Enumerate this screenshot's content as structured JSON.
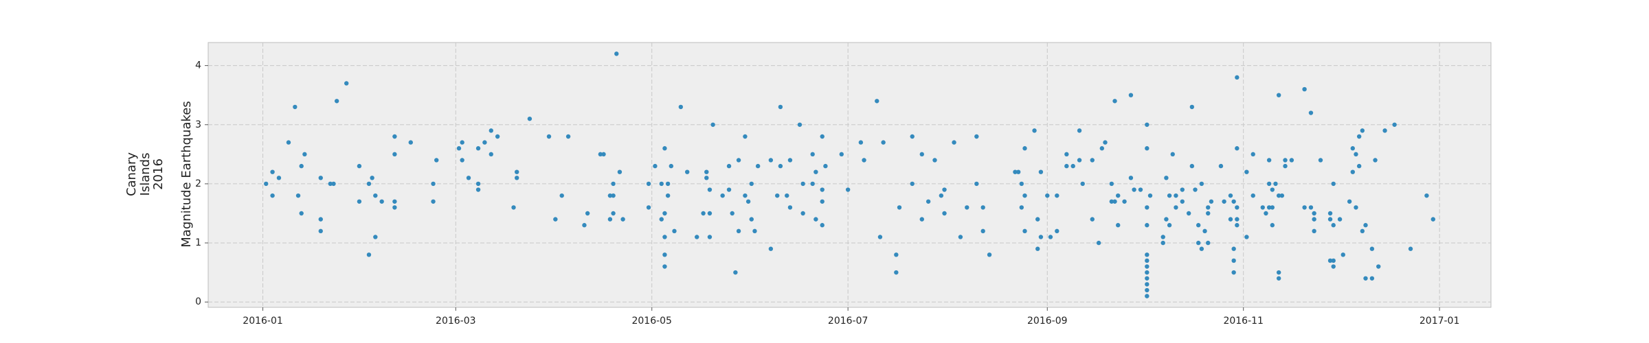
{
  "chart_data": {
    "type": "scatter",
    "ylabel_lines": [
      "Canary",
      "Islands",
      "2016",
      "Magnitude Earthquakes"
    ],
    "color": "#348abd",
    "grid": true,
    "xlim": [
      -17,
      382
    ],
    "ylim": [
      -0.09,
      4.39
    ],
    "xticks": [
      {
        "value": 0,
        "label": "2016-01"
      },
      {
        "value": 60,
        "label": "2016-03"
      },
      {
        "value": 121,
        "label": "2016-05"
      },
      {
        "value": 182,
        "label": "2016-07"
      },
      {
        "value": 244,
        "label": "2016-09"
      },
      {
        "value": 305,
        "label": "2016-11"
      },
      {
        "value": 366,
        "label": "2017-01"
      }
    ],
    "yticks": [
      0,
      1,
      2,
      3,
      4
    ],
    "x": [
      1,
      3,
      3,
      5,
      8,
      10,
      11,
      12,
      12,
      13,
      18,
      18,
      18,
      21,
      22,
      23,
      26,
      30,
      30,
      33,
      33,
      34,
      35,
      35,
      37,
      41,
      41,
      41,
      41,
      46,
      53,
      53,
      54,
      61,
      62,
      62,
      64,
      67,
      67,
      67,
      69,
      71,
      71,
      73,
      78,
      79,
      79,
      83,
      89,
      91,
      93,
      95,
      100,
      101,
      105,
      106,
      108,
      108,
      109,
      109,
      109,
      110,
      111,
      112,
      120,
      120,
      122,
      124,
      124,
      125,
      125,
      125,
      125,
      125,
      126,
      126,
      127,
      128,
      130,
      132,
      135,
      137,
      138,
      138,
      139,
      139,
      139,
      140,
      143,
      145,
      145,
      146,
      147,
      148,
      148,
      150,
      150,
      151,
      152,
      152,
      153,
      154,
      158,
      158,
      160,
      161,
      161,
      163,
      164,
      164,
      167,
      168,
      168,
      171,
      171,
      172,
      172,
      174,
      174,
      174,
      174,
      175,
      180,
      182,
      186,
      187,
      191,
      192,
      193,
      197,
      197,
      198,
      202,
      202,
      205,
      205,
      207,
      209,
      211,
      212,
      212,
      215,
      217,
      219,
      222,
      222,
      224,
      224,
      226,
      234,
      235,
      236,
      236,
      237,
      237,
      237,
      240,
      241,
      241,
      242,
      242,
      244,
      245,
      247,
      247,
      250,
      250,
      252,
      254,
      254,
      255,
      258,
      258,
      260,
      261,
      262,
      264,
      264,
      265,
      265,
      266,
      266,
      268,
      270,
      270,
      271,
      273,
      275,
      275,
      275,
      275,
      275,
      275,
      275,
      275,
      275,
      275,
      275,
      275,
      276,
      280,
      280,
      281,
      281,
      282,
      282,
      283,
      284,
      284,
      286,
      286,
      288,
      289,
      289,
      290,
      291,
      291,
      292,
      292,
      293,
      294,
      294,
      294,
      295,
      298,
      299,
      301,
      301,
      302,
      302,
      302,
      302,
      303,
      303,
      303,
      303,
      303,
      306,
      306,
      308,
      308,
      311,
      312,
      313,
      313,
      313,
      314,
      314,
      314,
      315,
      316,
      316,
      316,
      316,
      317,
      318,
      318,
      320,
      324,
      324,
      326,
      326,
      327,
      327,
      327,
      329,
      332,
      332,
      332,
      333,
      333,
      333,
      333,
      335,
      336,
      338,
      339,
      339,
      340,
      340,
      341,
      341,
      342,
      342,
      343,
      343,
      345,
      345,
      346,
      347,
      349,
      352,
      357,
      362,
      364
    ],
    "values": [
      2.0,
      2.2,
      1.8,
      2.1,
      2.7,
      3.3,
      1.8,
      1.5,
      2.3,
      2.5,
      2.1,
      1.4,
      1.2,
      2.0,
      2.0,
      3.4,
      3.7,
      2.3,
      1.7,
      0.8,
      2.0,
      2.1,
      1.1,
      1.8,
      1.7,
      1.6,
      1.7,
      2.5,
      2.8,
      2.7,
      1.7,
      2.0,
      2.4,
      2.6,
      2.7,
      2.4,
      2.1,
      2.0,
      1.9,
      2.6,
      2.7,
      2.9,
      2.5,
      2.8,
      1.6,
      2.1,
      2.2,
      3.1,
      2.8,
      1.4,
      1.8,
      2.8,
      1.3,
      1.5,
      2.5,
      2.5,
      1.4,
      1.8,
      2.0,
      1.5,
      1.8,
      4.2,
      2.2,
      1.4,
      2.0,
      1.6,
      2.3,
      1.4,
      2.0,
      2.6,
      0.6,
      0.8,
      1.1,
      1.5,
      1.8,
      2.0,
      2.3,
      1.2,
      3.3,
      2.2,
      1.1,
      1.5,
      2.1,
      2.2,
      1.9,
      1.5,
      1.1,
      3.0,
      1.8,
      2.3,
      1.9,
      1.5,
      0.5,
      2.4,
      1.2,
      1.8,
      2.8,
      1.7,
      1.4,
      2.0,
      1.2,
      2.3,
      0.9,
      2.4,
      1.8,
      3.3,
      2.3,
      1.8,
      1.6,
      2.4,
      3.0,
      2.0,
      1.5,
      2.5,
      2.0,
      1.4,
      2.2,
      1.9,
      1.7,
      1.3,
      2.8,
      2.3,
      2.5,
      1.9,
      2.7,
      2.4,
      3.4,
      1.1,
      2.7,
      0.5,
      0.8,
      1.6,
      2.8,
      2.0,
      2.5,
      1.4,
      1.7,
      2.4,
      1.8,
      1.5,
      1.9,
      2.7,
      1.1,
      1.6,
      2.8,
      2.0,
      1.6,
      1.2,
      0.8,
      2.2,
      2.2,
      1.6,
      2.0,
      1.8,
      2.6,
      1.2,
      2.9,
      1.4,
      0.9,
      2.2,
      1.1,
      1.8,
      1.1,
      1.2,
      1.8,
      2.3,
      2.5,
      2.3,
      2.4,
      2.9,
      2.0,
      2.4,
      1.4,
      1.0,
      2.6,
      2.7,
      2.0,
      1.7,
      1.7,
      3.4,
      1.3,
      1.8,
      1.7,
      3.5,
      2.1,
      1.9,
      1.9,
      3.0,
      1.3,
      1.6,
      0.1,
      0.2,
      0.3,
      0.4,
      0.5,
      0.6,
      0.7,
      0.8,
      2.6,
      1.8,
      1.0,
      1.1,
      2.1,
      1.4,
      1.8,
      1.3,
      2.5,
      1.8,
      1.6,
      1.9,
      1.7,
      1.5,
      2.3,
      3.3,
      1.9,
      1.0,
      1.3,
      0.9,
      2.0,
      1.2,
      1.5,
      1.0,
      1.6,
      1.7,
      2.3,
      1.7,
      1.4,
      1.8,
      0.9,
      0.7,
      0.5,
      1.7,
      3.8,
      1.3,
      1.6,
      1.4,
      2.6,
      2.2,
      1.1,
      2.5,
      1.8,
      1.6,
      1.5,
      2.4,
      2.0,
      1.6,
      1.3,
      1.9,
      1.6,
      2.0,
      1.8,
      3.5,
      0.5,
      0.4,
      1.8,
      2.4,
      2.3,
      2.4,
      3.6,
      1.6,
      3.2,
      1.6,
      1.4,
      1.5,
      1.2,
      2.4,
      1.5,
      1.4,
      0.7,
      1.3,
      0.6,
      0.7,
      2.0,
      1.4,
      0.8,
      1.7,
      2.2,
      2.6,
      2.5,
      1.6,
      2.3,
      2.8,
      2.9,
      1.2,
      1.3,
      0.4,
      0.9,
      0.4,
      2.4,
      0.6,
      2.9,
      3.0,
      0.9,
      1.8,
      1.4
    ]
  }
}
